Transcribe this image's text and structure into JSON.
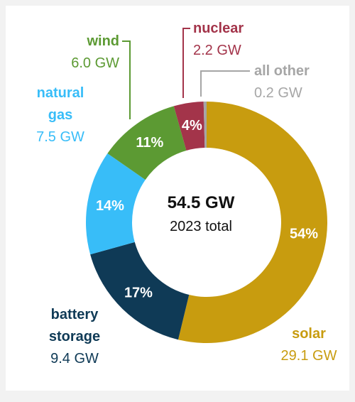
{
  "chart_data": {
    "type": "donut",
    "categories": [
      "solar",
      "battery storage",
      "natural gas",
      "wind",
      "nuclear",
      "all other"
    ],
    "values": [
      54,
      17,
      14,
      11,
      4,
      0.4
    ],
    "value_labels": [
      "54%",
      "17%",
      "14%",
      "11%",
      "4%",
      null
    ],
    "capacity_labels": [
      "29.1 GW",
      "9.4 GW",
      "7.5 GW",
      "6.0 GW",
      "2.2 GW",
      "0.2 GW"
    ],
    "colors": [
      "#c89c0f",
      "#0f3a56",
      "#38bdf8",
      "#5c9a33",
      "#a3344a",
      "#a6a6a6"
    ],
    "total": "54.5 GW",
    "total_label": "2023 total"
  }
}
